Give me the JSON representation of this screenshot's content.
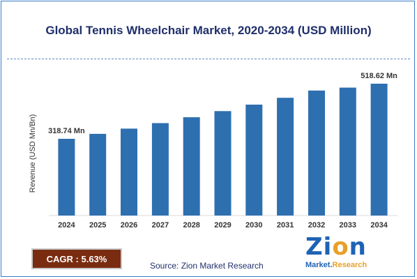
{
  "title": "Global Tennis Wheelchair Market, 2020-2034 (USD Million)",
  "cagr": {
    "label": "CAGR :",
    "value": "5.63%"
  },
  "source": "Source: Zion Market Research",
  "logo": {
    "word_a": "Zi",
    "word_o": "o",
    "word_b": "n",
    "sub_a": "Market.",
    "sub_b": "Research"
  },
  "colors": {
    "bar": "#2e6fb0",
    "title": "#1f2f6b",
    "cagr_bg": "#7a2c10",
    "logo_blue": "#1e63b5",
    "logo_orange": "#e8a02a"
  },
  "chart_data": {
    "type": "bar",
    "ylabel": "Revenue (USD Mn/Bn)",
    "xlabel": "",
    "categories": [
      "2024",
      "2025",
      "2026",
      "2027",
      "2028",
      "2029",
      "2030",
      "2031",
      "2032",
      "2033",
      "2034"
    ],
    "values": [
      318.74,
      336.7,
      355.6,
      375.6,
      396.8,
      419.1,
      442.7,
      467.6,
      493.9,
      504.5,
      518.62
    ],
    "data_labels": [
      {
        "index": 0,
        "text": "318.74 Mn"
      },
      {
        "index": 10,
        "text": "518.62 Mn"
      }
    ],
    "grid": false,
    "legend": "none"
  }
}
